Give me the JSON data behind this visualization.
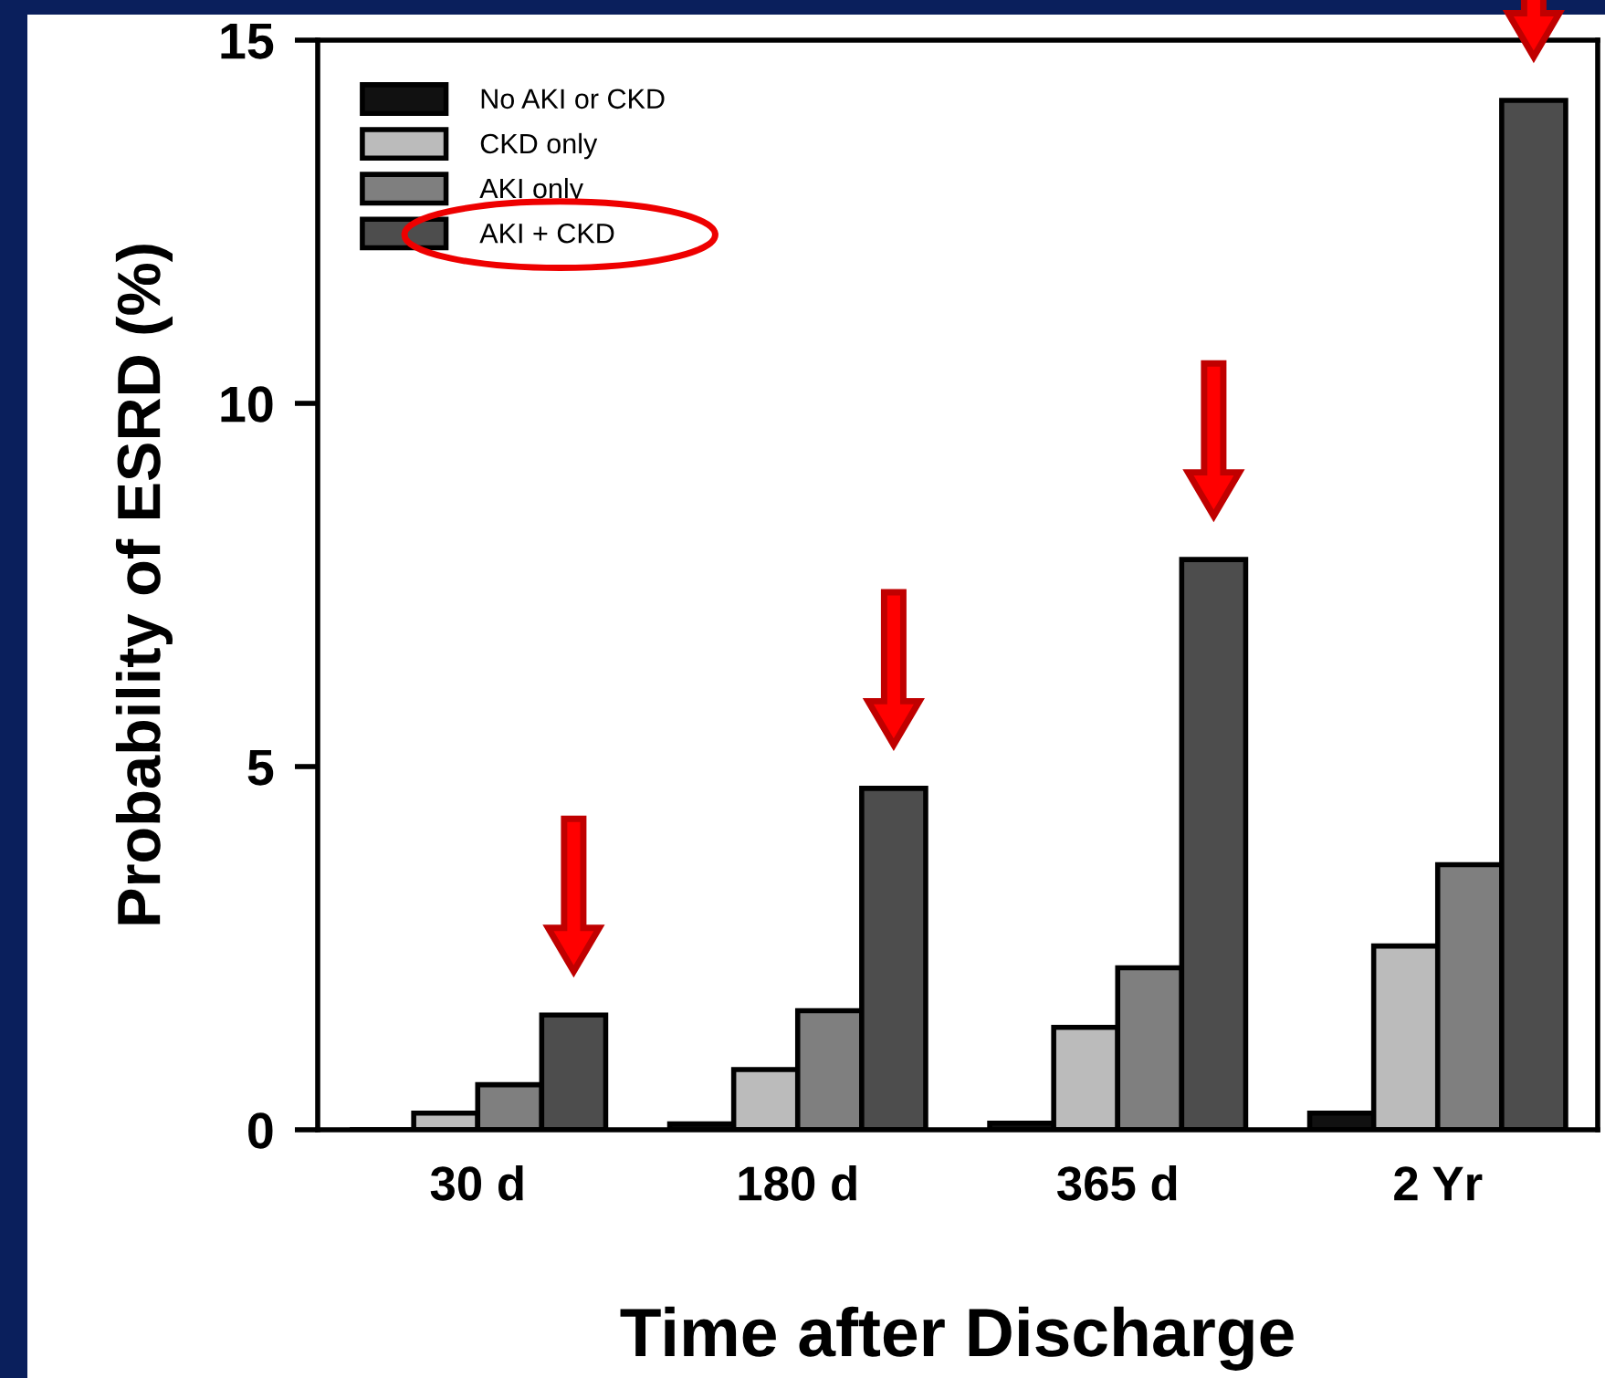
{
  "chart_data": {
    "type": "bar",
    "xlabel": "Time after Discharge",
    "ylabel": "Probability of ESRD (%)",
    "categories": [
      "30 d",
      "180 d",
      "365 d",
      "2 Yr"
    ],
    "series": [
      {
        "name": "No AKI or CKD",
        "color": "#111111",
        "values": [
          0,
          0.08,
          0.09,
          0.23
        ]
      },
      {
        "name": "CKD only",
        "color": "#bbbbbb",
        "values": [
          0.23,
          0.83,
          1.41,
          2.53
        ]
      },
      {
        "name": "AKI only",
        "color": "#7f7f7f",
        "values": [
          0.62,
          1.64,
          2.23,
          3.65
        ]
      },
      {
        "name": "AKI + CKD",
        "color": "#4d4d4d",
        "values": [
          1.58,
          4.7,
          7.85,
          14.17
        ]
      }
    ],
    "ylim": [
      0,
      15
    ],
    "yticks": [
      0,
      5,
      10,
      15
    ],
    "grid": false,
    "legend": "top left"
  }
}
